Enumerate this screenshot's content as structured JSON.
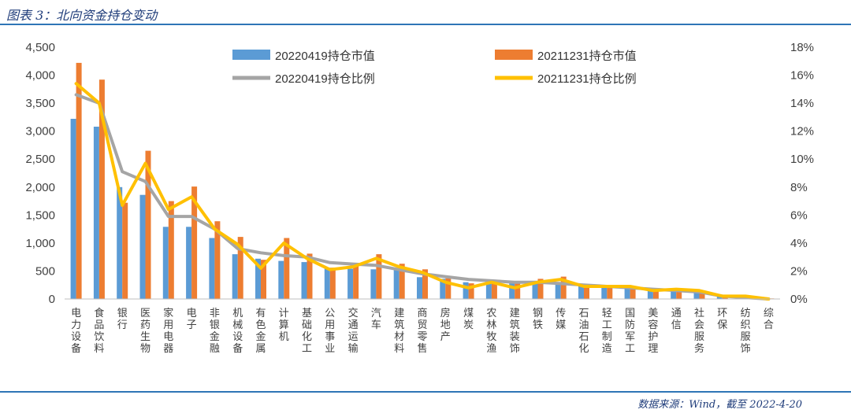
{
  "figure_title": "图表 3：北向资金持仓变动",
  "source_note": "数据来源：Wind，截至 2022-4-20",
  "chart_data": {
    "type": "bar",
    "categories": [
      "电力设备",
      "食品饮料",
      "银行",
      "医药生物",
      "家用电器",
      "电子",
      "非银金融",
      "机械设备",
      "有色金属",
      "计算机",
      "基础化工",
      "公用事业",
      "交通运输",
      "汽车",
      "建筑材料",
      "商贸零售",
      "房地产",
      "煤炭",
      "农林牧渔",
      "建筑装饰",
      "钢铁",
      "传媒",
      "石油石化",
      "轻工制造",
      "国防军工",
      "美容护理",
      "通信",
      "社会服务",
      "环保",
      "纺织服饰",
      "综合"
    ],
    "series": [
      {
        "name": "20220419持仓市值",
        "type": "bar",
        "axis": "left",
        "color": "#5b9bd5",
        "values": [
          3220,
          3080,
          2000,
          1860,
          1290,
          1290,
          1090,
          800,
          720,
          680,
          660,
          560,
          540,
          530,
          520,
          390,
          360,
          300,
          280,
          280,
          280,
          300,
          250,
          230,
          200,
          170,
          150,
          130,
          60,
          40,
          10
        ]
      },
      {
        "name": "20211231持仓市值",
        "type": "bar",
        "axis": "left",
        "color": "#ed7d31",
        "values": [
          4220,
          3920,
          1720,
          2650,
          1750,
          2010,
          1390,
          1110,
          700,
          1090,
          810,
          560,
          630,
          800,
          630,
          530,
          370,
          280,
          310,
          300,
          360,
          400,
          260,
          240,
          220,
          180,
          160,
          140,
          70,
          50,
          10
        ]
      },
      {
        "name": "20220419持仓比例",
        "type": "line",
        "axis": "right",
        "color": "#a5a5a5",
        "values": [
          14.6,
          14.0,
          9.1,
          8.4,
          5.9,
          5.9,
          5.0,
          3.6,
          3.3,
          3.1,
          3.0,
          2.6,
          2.5,
          2.4,
          2.1,
          1.8,
          1.6,
          1.4,
          1.3,
          1.2,
          1.2,
          1.1,
          1.0,
          0.9,
          0.8,
          0.7,
          0.6,
          0.5,
          0.2,
          0.1,
          0.0
        ]
      },
      {
        "name": "20211231持仓比例",
        "type": "line",
        "axis": "right",
        "color": "#ffc000",
        "values": [
          15.4,
          14.0,
          6.7,
          9.7,
          6.4,
          7.3,
          5.0,
          3.9,
          2.2,
          4.0,
          2.9,
          2.1,
          2.3,
          2.9,
          2.3,
          1.9,
          1.2,
          0.8,
          1.2,
          0.8,
          1.2,
          1.4,
          0.9,
          0.9,
          0.9,
          0.6,
          0.7,
          0.6,
          0.2,
          0.2,
          0.0
        ]
      }
    ],
    "ylim_left": [
      0,
      4500
    ],
    "yticks_left": [
      "4,500",
      "4,000",
      "3,500",
      "3,000",
      "2,500",
      "2,000",
      "1,500",
      "1,000",
      "500",
      "0"
    ],
    "ylim_right": [
      0,
      18
    ],
    "yticks_right": [
      "18%",
      "16%",
      "14%",
      "12%",
      "10%",
      "8%",
      "6%",
      "4%",
      "2%",
      "0%"
    ],
    "grid": false,
    "legend_position": "top"
  }
}
